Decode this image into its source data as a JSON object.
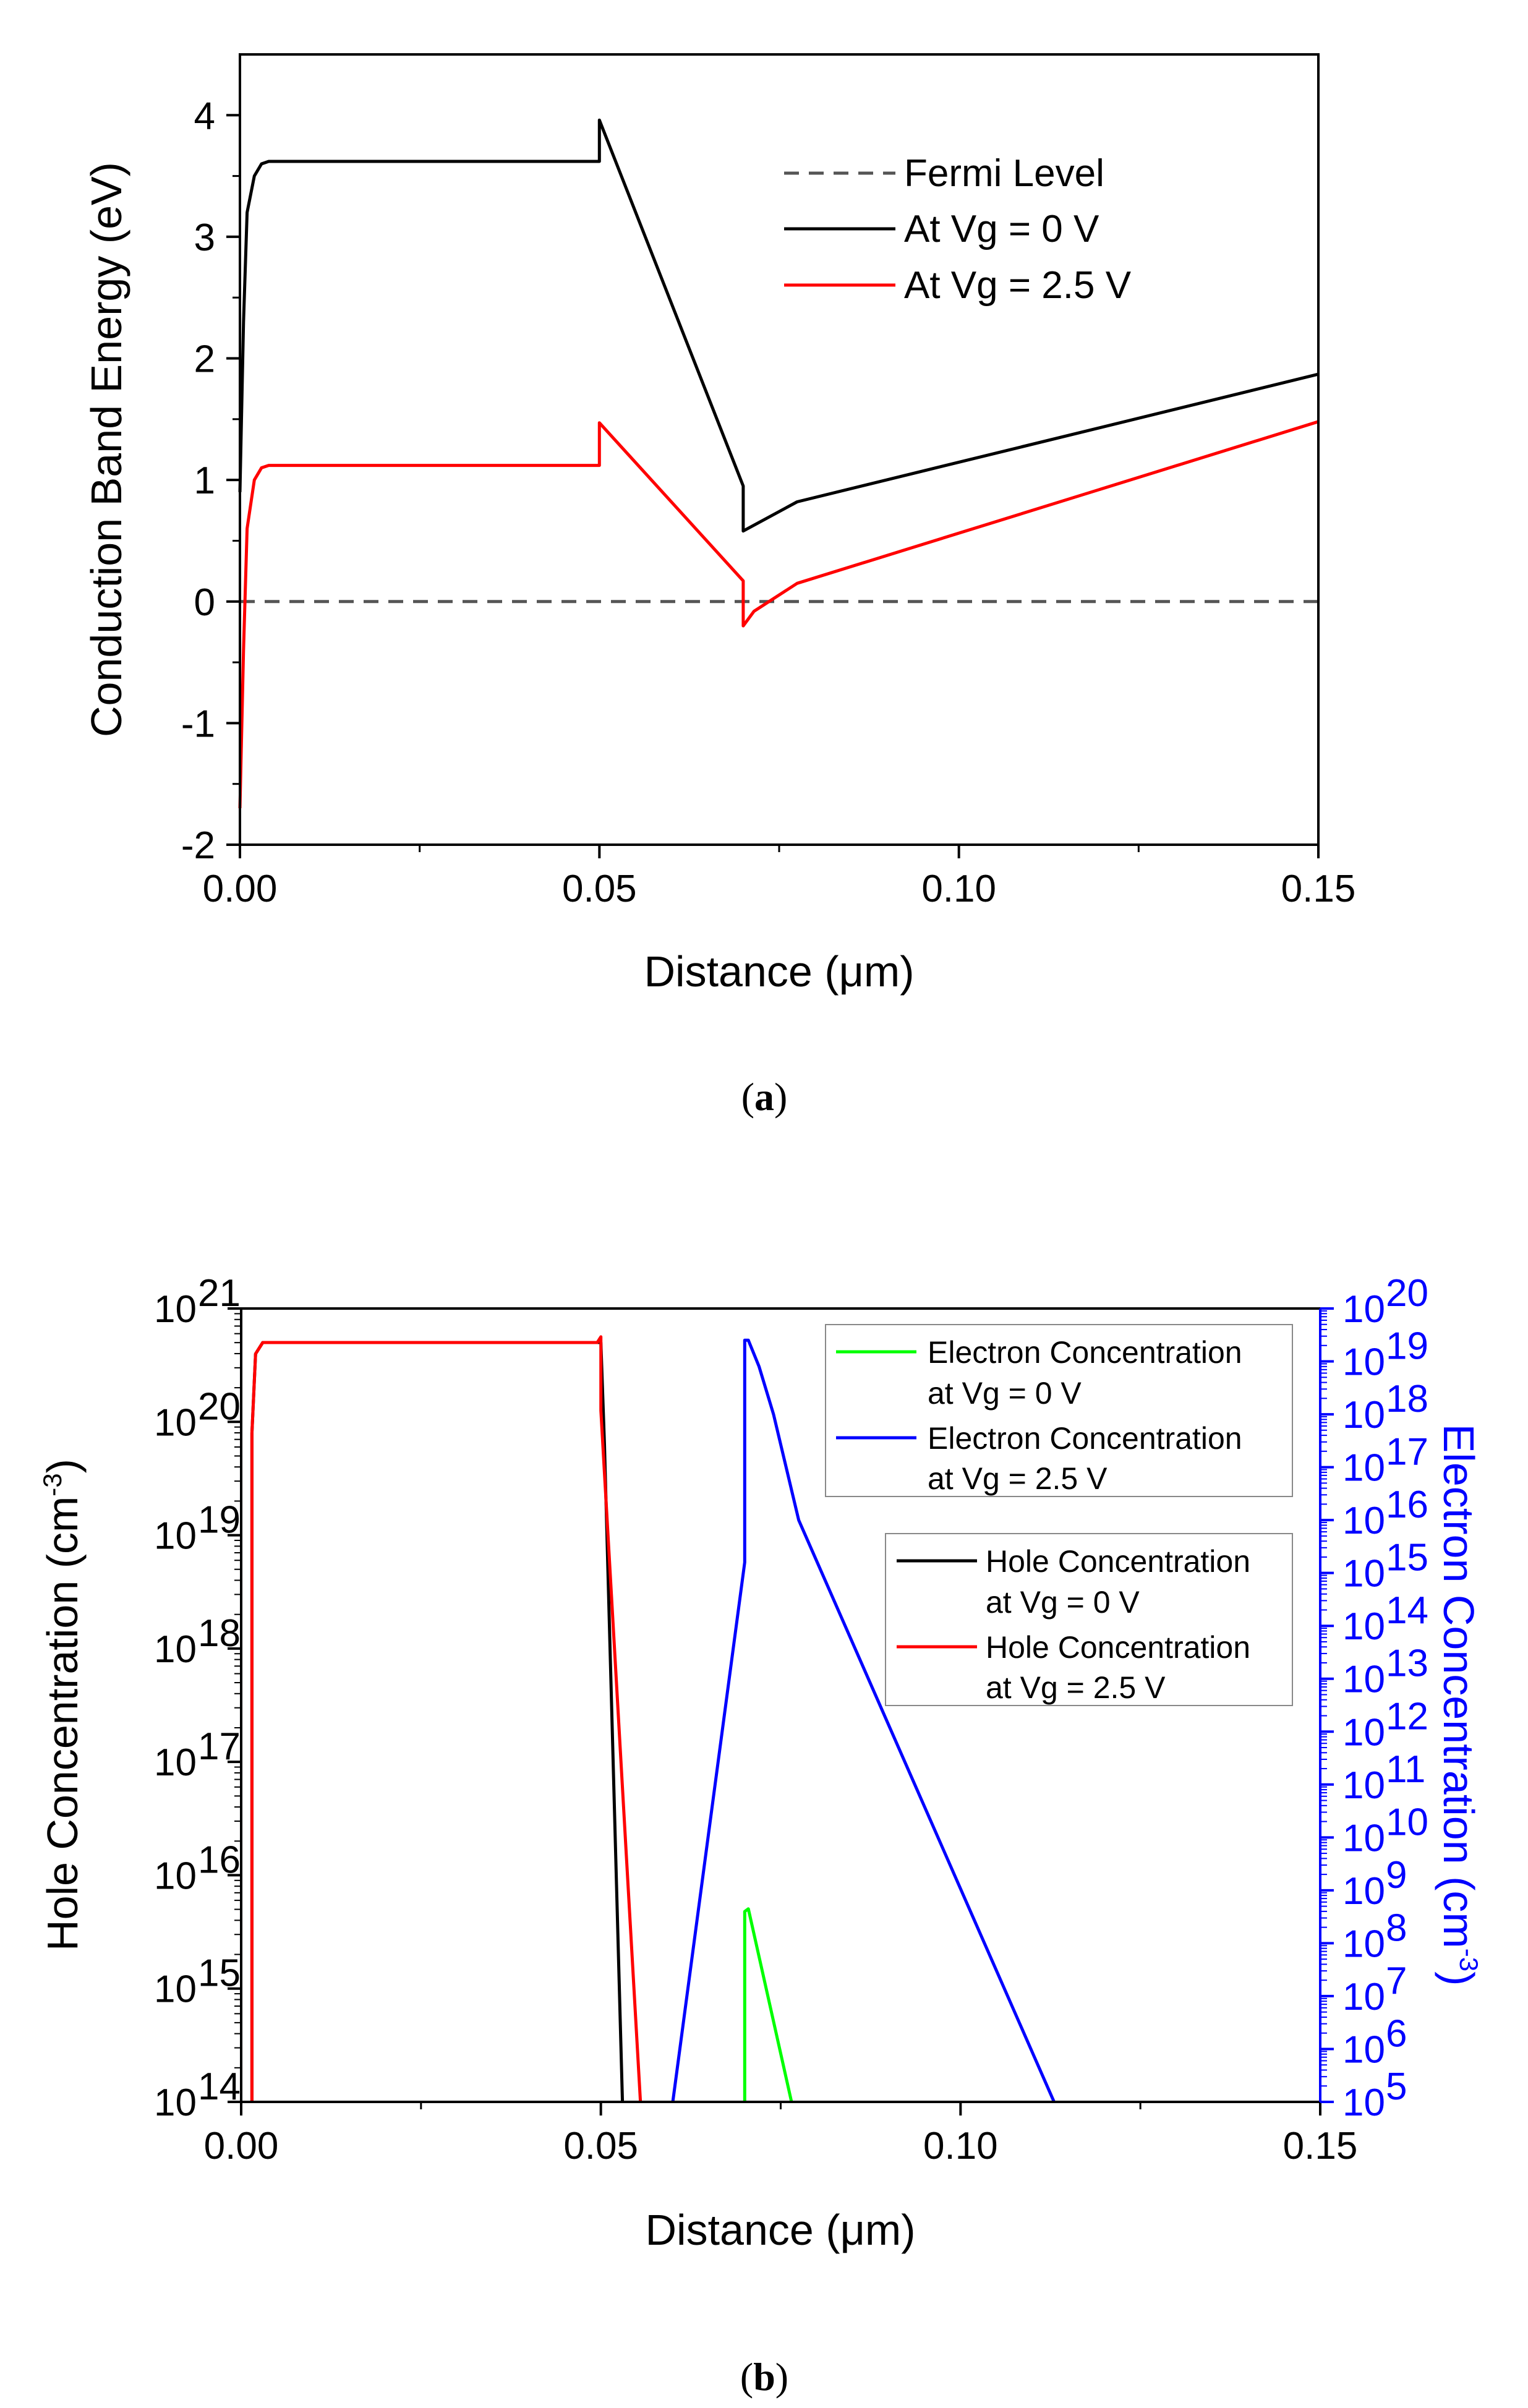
{
  "chart_data": [
    {
      "type": "line",
      "panel_label": "a",
      "xlabel": "Distance (μm)",
      "ylabel": "Conduction Band Energy (eV)",
      "xlim": [
        0,
        0.15
      ],
      "ylim": [
        -2,
        4.5
      ],
      "xticks": [
        0,
        0.05,
        0.1,
        0.15
      ],
      "xtick_labels": [
        "0.00",
        "0.05",
        "0.10",
        "0.15"
      ],
      "yticks": [
        -2,
        -1,
        0,
        1,
        2,
        3,
        4
      ],
      "ytick_labels": [
        "-2",
        "-1",
        "0",
        "1",
        "2",
        "3",
        "4"
      ],
      "legend_position": "top-right",
      "series": [
        {
          "name": "Fermi Level",
          "color": "#555555",
          "style": "dashed",
          "x": [
            0,
            0.15
          ],
          "y": [
            0,
            0
          ]
        },
        {
          "name": "At Vg = 0 V",
          "color": "#000000",
          "style": "solid",
          "x": [
            0,
            0.0005,
            0.001,
            0.002,
            0.003,
            0.004,
            0.006,
            0.05,
            0.05,
            0.07,
            0.07,
            0.0775,
            0.15
          ],
          "y": [
            0.9,
            2.3,
            3.2,
            3.5,
            3.6,
            3.62,
            3.62,
            3.62,
            3.96,
            0.95,
            0.58,
            0.82,
            1.87
          ]
        },
        {
          "name": "At Vg = 2.5 V",
          "color": "#ff0000",
          "style": "solid",
          "x": [
            0,
            0.0005,
            0.001,
            0.002,
            0.003,
            0.004,
            0.006,
            0.05,
            0.05,
            0.07,
            0.07,
            0.0715,
            0.0775,
            0.15
          ],
          "y": [
            -1.7,
            -0.4,
            0.6,
            1.0,
            1.1,
            1.12,
            1.12,
            1.12,
            1.47,
            0.17,
            -0.2,
            -0.08,
            0.15,
            1.48
          ]
        }
      ]
    },
    {
      "type": "line",
      "panel_label": "b",
      "xlabel": "Distance (μm)",
      "ylabel": "Hole Concentration (cm-3)",
      "ylabel_main": "Hole Concentration (cm",
      "ylabel_sup": "-3",
      "ylabel_end": ")",
      "y2label_main": "Electron Concentration (cm",
      "y2label_sup": "-3",
      "y2label_end": ")",
      "y2color": "#0000ff",
      "xlim": [
        0,
        0.15
      ],
      "ylim_exp": [
        14,
        21
      ],
      "y2lim_exp": [
        5,
        20
      ],
      "xticks": [
        0,
        0.05,
        0.1,
        0.15
      ],
      "xtick_labels": [
        "0.00",
        "0.05",
        "0.10",
        "0.15"
      ],
      "ytick_base": "10",
      "ytick_exps": [
        "14",
        "15",
        "16",
        "17",
        "18",
        "19",
        "20",
        "21"
      ],
      "y2tick_exps": [
        "5",
        "6",
        "7",
        "8",
        "9",
        "10",
        "11",
        "12",
        "13",
        "14",
        "15",
        "16",
        "17",
        "18",
        "19",
        "20"
      ],
      "legends": [
        {
          "position": "top-right",
          "entries": [
            {
              "line1": "Electron Concentration",
              "line2": "at Vg = 0 V",
              "color": "#00ff00"
            },
            {
              "line1": "Electron Concentration",
              "line2": "at Vg = 2.5 V",
              "color": "#0000ff"
            }
          ]
        },
        {
          "position": "middle-right",
          "entries": [
            {
              "line1": "Hole Concentration",
              "line2": "at Vg = 0 V",
              "color": "#000000"
            },
            {
              "line1": "Hole Concentration",
              "line2": "at Vg = 2.5 V",
              "color": "#ff0000"
            }
          ]
        }
      ],
      "series": [
        {
          "name": "Hole Concentration at Vg = 0 V",
          "axis": "left",
          "color": "#000000",
          "x": [
            0.0015,
            0.0015,
            0.002,
            0.003,
            0.05,
            0.0505,
            0.053
          ],
          "log10_y": [
            14,
            19.9,
            20.6,
            20.7,
            20.7,
            19.8,
            14
          ]
        },
        {
          "name": "Hole Concentration at Vg = 2.5 V",
          "axis": "left",
          "color": "#ff0000",
          "x": [
            0.0015,
            0.0015,
            0.002,
            0.003,
            0.0495,
            0.05,
            0.05,
            0.0555
          ],
          "log10_y": [
            14,
            19.9,
            20.6,
            20.7,
            20.7,
            20.75,
            20.1,
            14
          ]
        },
        {
          "name": "Electron Concentration at Vg = 0 V",
          "axis": "right",
          "color": "#00ff00",
          "x": [
            0.07,
            0.07,
            0.0705,
            0.0765
          ],
          "log10_y": [
            5,
            8.6,
            8.65,
            5
          ]
        },
        {
          "name": "Electron Concentration at Vg = 2.5 V",
          "axis": "right",
          "color": "#0000ff",
          "x": [
            0.06,
            0.07,
            0.07,
            0.0705,
            0.072,
            0.074,
            0.0775,
            0.113
          ],
          "log10_y": [
            5,
            15.2,
            19.4,
            19.4,
            18.9,
            18.0,
            16.0,
            5
          ]
        }
      ]
    }
  ],
  "captions": {
    "a_letter": "a",
    "b_letter": "b",
    "open_paren": "(",
    "close_paren": ")"
  },
  "legend_a": {
    "fermi": "Fermi Level",
    "vg0": "At Vg = 0 V",
    "vg25": "At Vg = 2.5 V"
  }
}
